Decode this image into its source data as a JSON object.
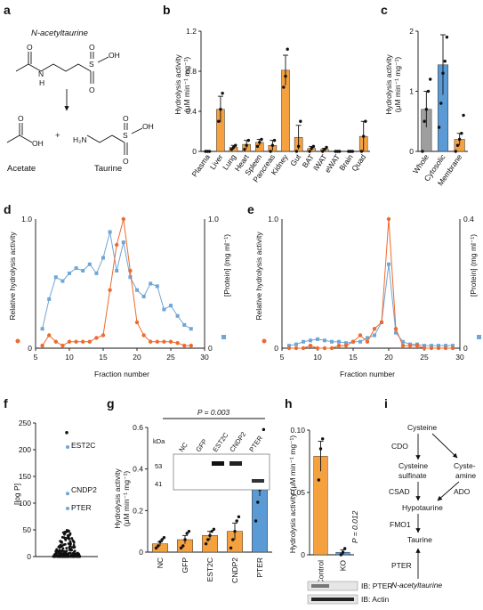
{
  "colors": {
    "orange": "#F5A13F",
    "orange_line": "#EE6A2F",
    "blue": "#6FA6D6",
    "blue_bar": "#5B9BD5",
    "grey": "#9E9E9E",
    "black": "#111111"
  },
  "panel_labels": [
    "a",
    "b",
    "c",
    "d",
    "e",
    "f",
    "g",
    "h",
    "i"
  ],
  "panel_a": {
    "top_name": "N-acetyltaurine",
    "oh_label": "OH",
    "o_label": "O",
    "s_label": "S",
    "n_label": "N",
    "h_label": "H",
    "nh2_label": "H₂N",
    "plus": "+",
    "acetate": "Acetate",
    "taurine": "Taurine"
  },
  "chart_data": [
    {
      "panel": "b",
      "type": "bar",
      "ylabel_lines": [
        "Hydrolysis activity",
        "(μM min⁻¹ mg⁻¹)"
      ],
      "ylim": [
        0,
        1.2
      ],
      "yticks": [
        "0",
        "0.4",
        "0.8",
        "1.2"
      ],
      "categories": [
        "Plasma",
        "Liver",
        "Lung",
        "Heart",
        "Spleen",
        "Pancreas",
        "Kidney",
        "Gut",
        "BAT",
        "iWAT",
        "eWAT",
        "Brain",
        "Quad"
      ],
      "values": [
        0.0,
        0.42,
        0.04,
        0.07,
        0.09,
        0.06,
        0.81,
        0.14,
        0.03,
        0.02,
        0.0,
        0.0,
        0.15
      ],
      "errors": [
        0.0,
        0.13,
        0.02,
        0.04,
        0.03,
        0.05,
        0.15,
        0.12,
        0.02,
        0.01,
        0.0,
        0.0,
        0.15
      ],
      "points": [
        [
          0,
          0,
          0
        ],
        [
          0.3,
          0.42,
          0.58
        ],
        [
          0.02,
          0.04,
          0.06
        ],
        [
          0.02,
          0.06,
          0.11
        ],
        [
          0.05,
          0.09,
          0.12
        ],
        [
          0.0,
          0.06,
          0.11
        ],
        [
          0.64,
          0.75,
          1.02
        ],
        [
          0.0,
          0.05,
          0.3
        ],
        [
          0.0,
          0.03,
          0.05
        ],
        [
          0.0,
          0.02,
          0.04
        ],
        [
          0,
          0,
          0
        ],
        [
          0,
          0,
          0
        ],
        [
          0.0,
          0.15,
          0.3
        ]
      ]
    },
    {
      "panel": "c",
      "type": "bar",
      "ylabel_lines": [
        "Hydrolysis activity",
        "(μM min⁻¹ mg⁻¹)"
      ],
      "ylim": [
        0,
        2
      ],
      "yticks": [
        "0",
        "1",
        "2"
      ],
      "categories": [
        "Whole",
        "Cytosolic",
        "Membrane"
      ],
      "values": [
        0.7,
        1.44,
        0.2
      ],
      "errors": [
        0.3,
        0.5,
        0.1
      ],
      "points": [
        [
          0.0,
          0.5,
          0.7,
          1.0,
          1.2
        ],
        [
          0.4,
          0.8,
          1.3,
          1.5,
          1.9
        ],
        [
          0.0,
          0.1,
          0.2,
          0.3,
          0.6
        ]
      ]
    },
    {
      "panel": "d",
      "type": "line",
      "xlabel": "Fraction number",
      "ylabel_left": "Relative hydrolysis activity",
      "ylabel_right": "[Protein] (mg ml⁻¹)",
      "xlim": [
        5,
        30
      ],
      "xticks": [
        "5",
        "10",
        "15",
        "20",
        "25",
        "30"
      ],
      "y_left_ticks": [
        "0",
        "1.0"
      ],
      "y_right_ticks": [
        "0",
        "1.0"
      ],
      "series": [
        {
          "x": [
            6,
            7,
            8,
            9,
            10,
            11,
            12,
            13,
            14,
            15,
            16,
            17,
            18,
            19,
            20,
            21,
            22,
            23,
            24,
            25,
            26,
            27,
            28
          ],
          "values": [
            0.02,
            0.1,
            0.05,
            0.02,
            0.05,
            0.05,
            0.05,
            0.05,
            0.08,
            0.1,
            0.45,
            0.8,
            1.0,
            0.6,
            0.2,
            0.1,
            0.05,
            0.05,
            0.05,
            0.05,
            0.04,
            0.02,
            0.02
          ]
        },
        {
          "x": [
            6,
            7,
            8,
            9,
            10,
            11,
            12,
            13,
            14,
            15,
            16,
            17,
            18,
            19,
            20,
            21,
            22,
            23,
            24,
            25,
            26,
            27,
            28
          ],
          "values": [
            0.15,
            0.38,
            0.55,
            0.52,
            0.58,
            0.62,
            0.6,
            0.65,
            0.58,
            0.7,
            0.9,
            0.6,
            0.82,
            0.55,
            0.45,
            0.4,
            0.5,
            0.48,
            0.3,
            0.33,
            0.25,
            0.18,
            0.15
          ]
        }
      ]
    },
    {
      "panel": "e",
      "type": "line",
      "xlabel": "Fraction number",
      "ylabel_left": "Relative hydrolysis activity",
      "ylabel_right": "[Protein] (mg ml⁻¹)",
      "xlim": [
        5,
        30
      ],
      "xticks": [
        "5",
        "10",
        "15",
        "20",
        "25",
        "30"
      ],
      "y_left_ticks": [
        "0",
        "1.0"
      ],
      "y_right_ticks": [
        "0",
        "0.4"
      ],
      "series": [
        {
          "x": [
            6,
            7,
            8,
            9,
            10,
            11,
            12,
            13,
            14,
            15,
            16,
            17,
            18,
            19,
            20,
            21,
            22,
            23,
            24,
            25,
            26,
            27,
            28,
            29
          ],
          "values": [
            0.0,
            0.0,
            0.0,
            0.02,
            0.0,
            0.0,
            0.0,
            0.02,
            0.02,
            0.05,
            0.1,
            0.05,
            0.15,
            0.2,
            1.0,
            0.15,
            0.02,
            0.02,
            0.02,
            0.0,
            0.0,
            0.0,
            0.0,
            0.0
          ]
        },
        {
          "x": [
            6,
            7,
            8,
            9,
            10,
            11,
            12,
            13,
            14,
            15,
            16,
            17,
            18,
            19,
            20,
            21,
            22,
            23,
            24,
            25,
            26,
            27,
            28,
            29
          ],
          "values": [
            0.02,
            0.03,
            0.05,
            0.06,
            0.07,
            0.06,
            0.05,
            0.05,
            0.04,
            0.05,
            0.05,
            0.08,
            0.1,
            0.2,
            0.65,
            0.12,
            0.05,
            0.03,
            0.03,
            0.02,
            0.02,
            0.02,
            0.02,
            0.02
          ]
        }
      ]
    },
    {
      "panel": "f",
      "type": "scatter",
      "ylabel": "[log P]",
      "ylim": [
        0,
        250
      ],
      "yticks": [
        "0",
        "50",
        "100",
        "150",
        "200",
        "250"
      ],
      "annotations": [
        "EST2C",
        "CNDP2",
        "PTER"
      ],
      "highlight_values": [
        205,
        118,
        90
      ],
      "top_value": 232
    },
    {
      "panel": "g",
      "type": "bar",
      "ylabel_lines": [
        "Hydrolysis activity",
        "(μM min⁻¹ mg⁻¹)"
      ],
      "ylim": [
        0,
        0.6
      ],
      "yticks": [
        "0",
        "0.2",
        "0.4",
        "0.6"
      ],
      "categories": [
        "NC",
        "GFP",
        "EST2C",
        "CNDP2",
        "PTER"
      ],
      "values": [
        0.04,
        0.06,
        0.08,
        0.1,
        0.33
      ],
      "errors": [
        0.01,
        0.02,
        0.02,
        0.04,
        0.06
      ],
      "points": [
        [
          0.02,
          0.03,
          0.05,
          0.06,
          0.07
        ],
        [
          0.02,
          0.03,
          0.06,
          0.09,
          0.1
        ],
        [
          0.04,
          0.06,
          0.08,
          0.1,
          0.11
        ],
        [
          0.02,
          0.06,
          0.1,
          0.15,
          0.17
        ],
        [
          0.15,
          0.24,
          0.3,
          0.37,
          0.59
        ]
      ],
      "p_label": "P = 0.003",
      "blot": {
        "kda": "kDa",
        "marker_53": "53",
        "marker_41": "41",
        "lanes": [
          "NC",
          "GFP",
          "EST2C",
          "CNDP2",
          "PTER"
        ]
      }
    },
    {
      "panel": "h",
      "type": "bar",
      "ylabel": "Hydrolysis activity (μM min⁻¹ mg⁻¹)",
      "ylim": [
        0,
        0.1
      ],
      "yticks": [
        "0",
        "0.05",
        "0.10"
      ],
      "categories": [
        "Control",
        "KO"
      ],
      "values": [
        0.079,
        0.002
      ],
      "errors": [
        0.012,
        0.002
      ],
      "points": [
        [
          0.06,
          0.085,
          0.093
        ],
        [
          0.0,
          0.002,
          0.005
        ]
      ],
      "p_label": "P = 0.012",
      "blots": [
        "IB: PTER",
        "IB: Actin"
      ]
    }
  ],
  "panel_i": {
    "cysteine": "Cysteine",
    "cdo": "CDO",
    "cysteine_sulfinate_1": "Cysteine",
    "cysteine_sulfinate_2": "sulfinate",
    "cysteamine_1": "Cyste-",
    "cysteamine_2": "amine",
    "csad": "CSAD",
    "ado": "ADO",
    "hypotaurine": "Hypotaurine",
    "fmo1": "FMO1",
    "taurine": "Taurine",
    "pter": "PTER",
    "nacetyl": "N-acetyltaurine"
  }
}
